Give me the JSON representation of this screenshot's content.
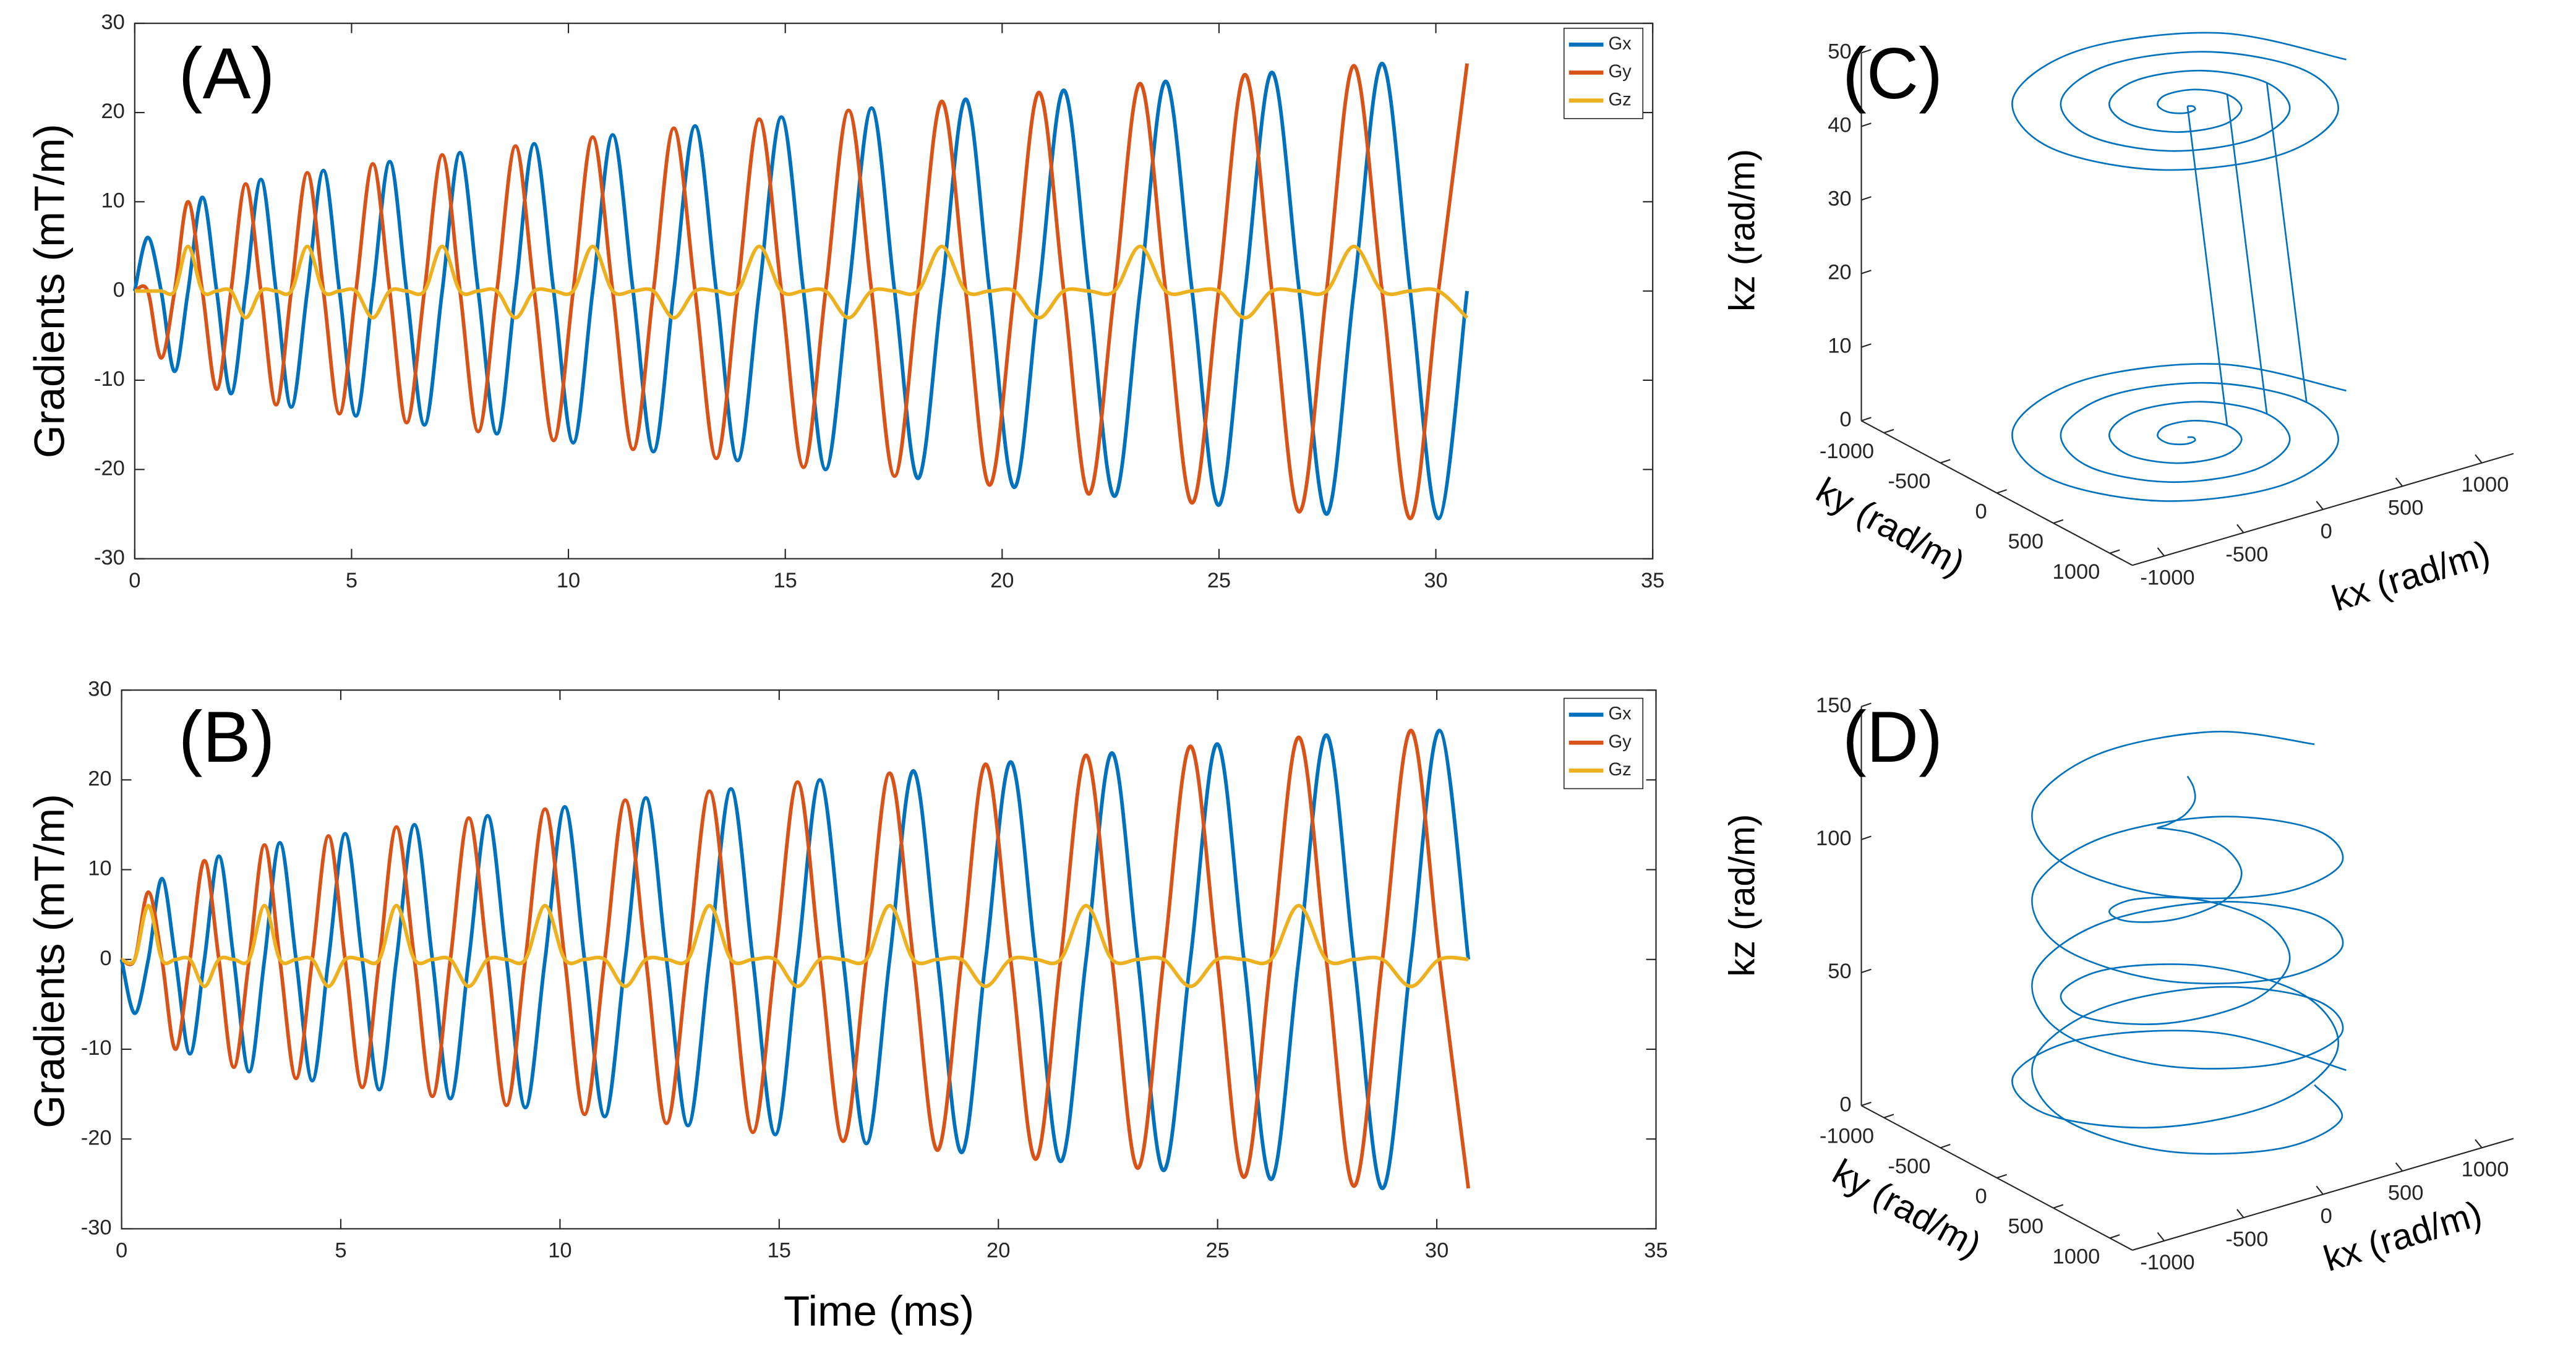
{
  "chart_data": [
    {
      "type": "line",
      "panel_label": "(A)",
      "y_label": "Gradients (mT/m)",
      "xlim": [
        0,
        35
      ],
      "xticks": [
        0,
        5,
        10,
        15,
        20,
        25,
        30,
        35
      ],
      "ylim": [
        -30,
        30
      ],
      "yticks": [
        -30,
        -20,
        -10,
        0,
        10,
        20,
        30
      ],
      "legend": "northeast",
      "x": [
        0,
        0.3,
        0.61,
        0.92,
        1.23,
        1.56,
        1.89,
        2.22,
        2.56,
        2.91,
        3.26,
        3.61,
        3.98,
        4.35,
        4.72,
        5.1,
        5.49,
        5.88,
        6.27,
        6.68,
        7.09,
        7.5,
        7.92,
        8.35,
        8.78,
        9.21,
        9.66,
        10.11,
        10.56,
        11.02,
        11.49,
        11.96,
        12.43,
        12.92,
        13.41,
        13.9,
        14.4,
        14.91,
        15.42,
        15.93,
        16.46,
        16.99,
        17.52,
        18.06,
        18.61,
        19.16,
        19.71,
        20.28,
        20.85,
        21.42,
        22,
        22.59,
        23.18,
        23.77,
        24.38,
        24.99,
        25.6,
        26.22,
        26.85,
        27.48,
        28.11,
        28.76,
        29.41,
        30.06,
        30.72
      ],
      "series": [
        {
          "name": "Gx",
          "color": "#0072BD",
          "values": [
            0,
            6,
            0,
            -9,
            0,
            10.5,
            0,
            -11.5,
            0,
            12.5,
            0,
            -13,
            0,
            13.5,
            0,
            -14,
            0,
            14.5,
            0,
            -15,
            0,
            15.5,
            0,
            -16,
            0,
            16.5,
            0,
            -17,
            0,
            17.5,
            0,
            -18,
            0,
            18.5,
            0,
            -19,
            0,
            19.5,
            0,
            -20,
            0,
            20.5,
            0,
            -21,
            0,
            21.5,
            0,
            -22,
            0,
            22.5,
            0,
            -23,
            0,
            23.5,
            0,
            -24,
            0,
            24.5,
            0,
            -25,
            0,
            25.5,
            0,
            -25.5,
            0
          ]
        },
        {
          "name": "Gy",
          "color": "#D95319",
          "values": [
            0,
            0,
            -7.5,
            0,
            10,
            0,
            -11,
            0,
            12,
            0,
            -12.75,
            0,
            13.25,
            0,
            -13.75,
            0,
            14.25,
            0,
            -14.75,
            0,
            15.25,
            0,
            -15.75,
            0,
            16.25,
            0,
            -16.75,
            0,
            17.25,
            0,
            -17.75,
            0,
            18.25,
            0,
            -18.75,
            0,
            19.25,
            0,
            -19.75,
            0,
            20.25,
            0,
            -20.75,
            0,
            21.25,
            0,
            -21.75,
            0,
            22.25,
            0,
            -22.75,
            0,
            23.25,
            0,
            -23.75,
            0,
            24.25,
            0,
            -24.75,
            0,
            25.25,
            0,
            -25.5,
            0,
            25.5
          ]
        },
        {
          "name": "Gz",
          "color": "#EDB120",
          "values": [
            0,
            0,
            0,
            0,
            5,
            0,
            0,
            0,
            -3,
            0,
            0,
            0,
            5,
            0,
            0,
            0,
            -3,
            0,
            0,
            0,
            5,
            0,
            0,
            0,
            -3,
            0,
            0,
            0,
            5,
            0,
            0,
            0,
            -3,
            0,
            0,
            0,
            5,
            0,
            0,
            0,
            -3,
            0,
            0,
            0,
            5,
            0,
            0,
            0,
            -3,
            0,
            0,
            0,
            5,
            0,
            0,
            0,
            -3,
            0,
            0,
            0,
            5,
            0,
            0,
            0,
            -3
          ]
        }
      ]
    },
    {
      "type": "line",
      "panel_label": "(B)",
      "y_label": "Gradients (mT/m)",
      "x_label": "Time (ms)",
      "xlim": [
        0,
        35
      ],
      "xticks": [
        0,
        5,
        10,
        15,
        20,
        25,
        30,
        35
      ],
      "ylim": [
        -30,
        30
      ],
      "yticks": [
        -30,
        -20,
        -10,
        0,
        10,
        20,
        30
      ],
      "legend": "northeast",
      "x": [
        0,
        0.3,
        0.61,
        0.92,
        1.23,
        1.56,
        1.89,
        2.22,
        2.56,
        2.91,
        3.26,
        3.61,
        3.98,
        4.35,
        4.72,
        5.1,
        5.49,
        5.88,
        6.27,
        6.68,
        7.09,
        7.5,
        7.92,
        8.35,
        8.78,
        9.21,
        9.66,
        10.11,
        10.56,
        11.02,
        11.49,
        11.96,
        12.43,
        12.92,
        13.41,
        13.9,
        14.4,
        14.91,
        15.42,
        15.93,
        16.46,
        16.99,
        17.52,
        18.06,
        18.61,
        19.16,
        19.71,
        20.28,
        20.85,
        21.42,
        22,
        22.59,
        23.18,
        23.77,
        24.38,
        24.99,
        25.6,
        26.22,
        26.85,
        27.48,
        28.11,
        28.76,
        29.41,
        30.06,
        30.72
      ],
      "series": [
        {
          "name": "Gx",
          "color": "#0072BD",
          "values": [
            0,
            -6,
            0,
            9,
            0,
            -10.5,
            0,
            11.5,
            0,
            -12.5,
            0,
            13,
            0,
            -13.5,
            0,
            14,
            0,
            -14.5,
            0,
            15,
            0,
            -15.5,
            0,
            16,
            0,
            -16.5,
            0,
            17,
            0,
            -17.5,
            0,
            18,
            0,
            -18.5,
            0,
            19,
            0,
            -19.5,
            0,
            20,
            0,
            -20.5,
            0,
            21,
            0,
            -21.5,
            0,
            22,
            0,
            -22.5,
            0,
            23,
            0,
            -23.5,
            0,
            24,
            0,
            -24.5,
            0,
            25,
            0,
            -25.5,
            0,
            25.5,
            0
          ]
        },
        {
          "name": "Gy",
          "color": "#D95319",
          "values": [
            0,
            0,
            7.5,
            0,
            -10,
            0,
            11,
            0,
            -12,
            0,
            12.75,
            0,
            -13.25,
            0,
            13.75,
            0,
            -14.25,
            0,
            14.75,
            0,
            -15.25,
            0,
            15.75,
            0,
            -16.25,
            0,
            16.75,
            0,
            -17.25,
            0,
            17.75,
            0,
            -18.25,
            0,
            18.75,
            0,
            -19.25,
            0,
            19.75,
            0,
            -20.25,
            0,
            20.75,
            0,
            -21.25,
            0,
            21.75,
            0,
            -22.25,
            0,
            22.75,
            0,
            -23.25,
            0,
            23.75,
            0,
            -24.25,
            0,
            24.75,
            0,
            -25.25,
            0,
            25.5,
            0,
            -25.5
          ]
        },
        {
          "name": "Gz",
          "color": "#EDB120",
          "values": [
            0,
            0,
            6,
            0,
            0,
            0,
            -3,
            0,
            0,
            0,
            6,
            0,
            0,
            0,
            -3,
            0,
            0,
            0,
            6,
            0,
            0,
            0,
            -3,
            0,
            0,
            0,
            6,
            0,
            0,
            0,
            -3,
            0,
            0,
            0,
            6,
            0,
            0,
            0,
            -3,
            0,
            0,
            0,
            6,
            0,
            0,
            0,
            -3,
            0,
            0,
            0,
            6,
            0,
            0,
            0,
            -3,
            0,
            0,
            0,
            6,
            0,
            0,
            0,
            -3,
            0,
            0
          ]
        }
      ]
    },
    {
      "type": "line3d",
      "panel_label": "(C)",
      "x_label": "kx (rad/m)",
      "y_label": "ky (rad/m)",
      "z_label": "kz (rad/m)",
      "xlim": [
        -1200,
        1200
      ],
      "xticks": [
        -1000,
        -500,
        0,
        500,
        1000
      ],
      "ylim": [
        -1200,
        1200
      ],
      "yticks": [
        -1000,
        -500,
        0,
        500,
        1000
      ],
      "zlim": [
        0,
        50
      ],
      "zticks": [
        0,
        10,
        20,
        30,
        40,
        50
      ],
      "series": [
        {
          "color": "#0072BD",
          "x": [
            0,
            22,
            0,
            -66,
            -125,
            -110,
            0,
            155,
            250,
            199,
            0,
            -243,
            -375,
            -287,
            0,
            332,
            500,
            375,
            0,
            -420,
            -625,
            -464,
            0,
            508,
            750,
            552,
            0,
            -597,
            -875,
            -641,
            0,
            685,
            1000
          ],
          "y": [
            0,
            22,
            63,
            66,
            0,
            -110,
            -188,
            -155,
            0,
            199,
            313,
            243,
            0,
            -287,
            -438,
            -332,
            0,
            375,
            563,
            420,
            0,
            -464,
            -688,
            -508,
            0,
            552,
            813,
            597,
            0,
            -641,
            -938,
            -685,
            0
          ],
          "z": [
            0,
            0,
            0,
            0,
            0,
            0,
            0,
            0,
            0,
            0,
            0,
            0,
            0,
            0,
            0,
            0,
            0,
            0,
            0,
            0,
            0,
            0,
            0,
            0,
            0,
            0,
            0,
            0,
            0,
            0,
            0,
            0,
            0
          ]
        },
        {
          "color": "#0072BD",
          "x": [
            0,
            22,
            0,
            -66,
            -125,
            -110,
            0,
            155,
            250,
            199,
            0,
            -243,
            -375,
            -287,
            0,
            332,
            500,
            375,
            0,
            -420,
            -625,
            -464,
            0,
            508,
            750,
            552,
            0,
            -597,
            -875,
            -641,
            0,
            685,
            1000
          ],
          "y": [
            0,
            22,
            63,
            66,
            0,
            -110,
            -188,
            -155,
            0,
            199,
            313,
            243,
            0,
            -287,
            -438,
            -332,
            0,
            375,
            563,
            420,
            0,
            -464,
            -688,
            -508,
            0,
            552,
            813,
            597,
            0,
            -641,
            -938,
            -685,
            0
          ],
          "z": [
            45,
            45,
            45,
            45,
            45,
            45,
            45,
            45,
            45,
            45,
            45,
            45,
            45,
            45,
            45,
            45,
            45,
            45,
            45,
            45,
            45,
            45,
            45,
            45,
            45,
            45,
            45,
            45,
            45,
            45,
            45,
            45,
            45
          ]
        },
        {
          "color": "#0072BD",
          "x": [
            250,
            0
          ],
          "y": [
            0,
            0
          ],
          "z": [
            0,
            45
          ]
        },
        {
          "color": "#0072BD",
          "x": [
            500,
            250
          ],
          "y": [
            0,
            0
          ],
          "z": [
            0,
            45
          ]
        },
        {
          "color": "#0072BD",
          "x": [
            750,
            500
          ],
          "y": [
            0,
            0
          ],
          "z": [
            0,
            45
          ]
        }
      ]
    },
    {
      "type": "line3d",
      "panel_label": "(D)",
      "x_label": "kx (rad/m)",
      "y_label": "ky (rad/m)",
      "z_label": "kz (rad/m)",
      "xlim": [
        -1200,
        1200
      ],
      "xticks": [
        -1000,
        -500,
        0,
        500,
        1000
      ],
      "ylim": [
        -1200,
        1200
      ],
      "yticks": [
        -1000,
        -500,
        0,
        500,
        1000
      ],
      "zlim": [
        0,
        150
      ],
      "zticks": [
        0,
        50,
        100,
        150
      ],
      "series": [
        {
          "color": "#0072BD",
          "x": [
            800,
            566,
            0,
            -566,
            -800,
            -566,
            0,
            566,
            800,
            566,
            0,
            -566,
            -800,
            -566,
            0,
            566,
            800,
            566,
            0,
            -566,
            -800,
            -566,
            0,
            566,
            800,
            566,
            0,
            -566,
            -800,
            -566,
            0,
            566,
            800
          ],
          "y": [
            0,
            566,
            800,
            566,
            0,
            -566,
            -800,
            -566,
            0,
            566,
            800,
            566,
            0,
            -566,
            -800,
            -566,
            0,
            566,
            800,
            566,
            0,
            -566,
            -800,
            -566,
            0,
            566,
            800,
            566,
            0,
            -566,
            -800,
            -566,
            0
          ],
          "z": [
            0,
            4,
            8,
            12,
            16,
            20,
            24,
            28,
            32,
            36,
            40,
            44,
            48,
            52,
            56,
            60,
            64,
            68,
            72,
            76,
            80,
            84,
            88,
            92,
            96,
            100,
            104,
            108,
            112,
            116,
            120,
            124,
            128
          ]
        },
        {
          "color": "#0072BD",
          "x": [
            0,
            22,
            0,
            -66,
            -125,
            -110,
            0,
            155,
            250,
            199,
            0,
            -243,
            -375,
            -287,
            0,
            332,
            500,
            375,
            0,
            -420,
            -625,
            -464,
            0,
            508,
            750,
            552,
            0,
            -597,
            -875,
            -641,
            0,
            685,
            1000
          ],
          "y": [
            0,
            22,
            63,
            66,
            0,
            -110,
            -188,
            -155,
            0,
            199,
            313,
            243,
            0,
            -287,
            -438,
            -332,
            0,
            375,
            563,
            420,
            0,
            -464,
            -688,
            -508,
            0,
            552,
            813,
            597,
            0,
            -641,
            -938,
            -685,
            0
          ],
          "z": [
            130,
            126,
            122,
            118,
            114,
            110,
            106,
            102,
            98,
            94,
            90,
            86,
            82,
            78,
            74,
            70,
            66,
            62,
            58,
            54,
            50,
            46,
            42,
            38,
            34,
            30,
            26,
            22,
            18,
            14,
            10,
            6,
            2
          ]
        }
      ]
    }
  ]
}
